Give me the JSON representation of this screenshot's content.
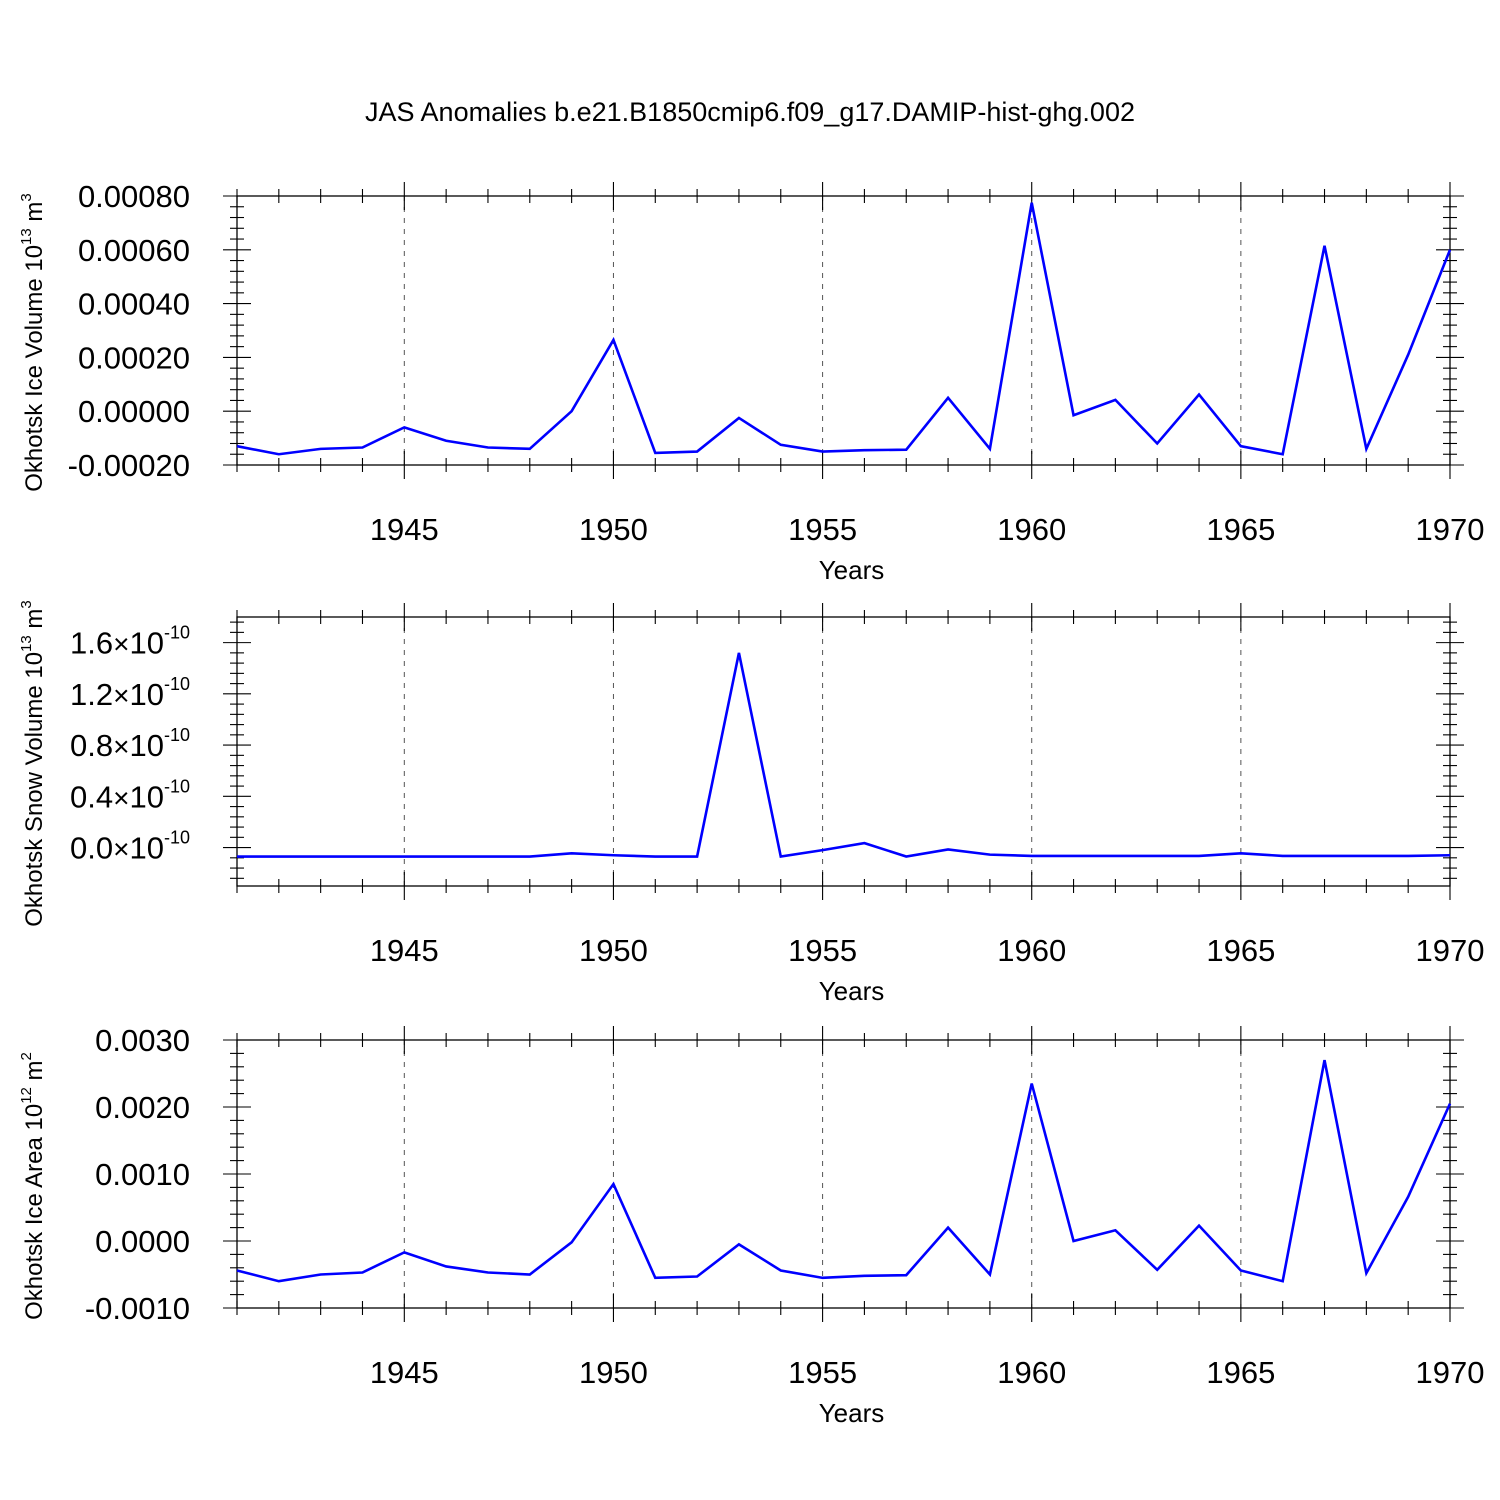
{
  "title": "JAS Anomalies b.e21.B1850cmip6.f09_g17.DAMIP-hist-ghg.002",
  "colors": {
    "line": "#0000ff",
    "axes": "#000000",
    "grid": "#555555"
  },
  "chart_data": [
    {
      "type": "line",
      "ylabel": "Okhotsk Ice Volume 10",
      "ylabel_exp": "13",
      "ylabel_unit": " m",
      "ylabel_unit_exp": "3",
      "xlabel": "Years",
      "xlim": [
        1941,
        1970
      ],
      "ylim": [
        -0.0002,
        0.0008
      ],
      "x_ticks": [
        1945,
        1950,
        1955,
        1960,
        1965,
        1970
      ],
      "x_tick_labels": [
        "1945",
        "1950",
        "1955",
        "1960",
        "1965",
        "1970"
      ],
      "y_ticks": [
        -0.0002,
        0.0,
        0.0002,
        0.0004,
        0.0006,
        0.0008
      ],
      "y_tick_labels": [
        "-0.00020",
        "0.00000",
        "0.00020",
        "0.00040",
        "0.00060",
        "0.00080"
      ],
      "x": [
        1941,
        1942,
        1943,
        1944,
        1945,
        1946,
        1947,
        1948,
        1949,
        1950,
        1951,
        1952,
        1953,
        1954,
        1955,
        1956,
        1957,
        1958,
        1959,
        1960,
        1961,
        1962,
        1963,
        1964,
        1965,
        1966,
        1967,
        1968,
        1969,
        1970
      ],
      "series": [
        {
          "name": "Okhotsk Ice Volume",
          "values": [
            -0.00013,
            -0.00016,
            -0.00014,
            -0.000135,
            -6e-05,
            -0.00011,
            -0.000135,
            -0.00014,
            0.0,
            0.000265,
            -0.000155,
            -0.00015,
            -2.5e-05,
            -0.000125,
            -0.00015,
            -0.000145,
            -0.000143,
            5e-05,
            -0.00014,
            0.000775,
            -1.5e-05,
            4.2e-05,
            -0.00012,
            6.2e-05,
            -0.00013,
            -0.00016,
            0.000615,
            -0.00014,
            0.00021,
            0.0006
          ]
        }
      ]
    },
    {
      "type": "line",
      "ylabel": "Okhotsk Snow Volume 10",
      "ylabel_exp": "13",
      "ylabel_unit": " m",
      "ylabel_unit_exp": "3",
      "xlabel": "Years",
      "xlim": [
        1941,
        1970
      ],
      "ylim": [
        -3e-11,
        1.8e-10
      ],
      "x_ticks": [
        1945,
        1950,
        1955,
        1960,
        1965,
        1970
      ],
      "x_tick_labels": [
        "1945",
        "1950",
        "1955",
        "1960",
        "1965",
        "1970"
      ],
      "y_ticks": [
        0.0,
        4e-11,
        8e-11,
        1.2e-10,
        1.6e-10
      ],
      "y_tick_labels": [
        {
          "mantissa": "0.0",
          "times": "×",
          "base": "10",
          "exp": "-10"
        },
        {
          "mantissa": "0.4",
          "times": "×",
          "base": "10",
          "exp": "-10"
        },
        {
          "mantissa": "0.8",
          "times": "×",
          "base": "10",
          "exp": "-10"
        },
        {
          "mantissa": "1.2",
          "times": "×",
          "base": "10",
          "exp": "-10"
        },
        {
          "mantissa": "1.6",
          "times": "×",
          "base": "10",
          "exp": "-10"
        }
      ],
      "x": [
        1941,
        1942,
        1943,
        1944,
        1945,
        1946,
        1947,
        1948,
        1949,
        1950,
        1951,
        1952,
        1953,
        1954,
        1955,
        1956,
        1957,
        1958,
        1959,
        1960,
        1961,
        1962,
        1963,
        1964,
        1965,
        1966,
        1967,
        1968,
        1969,
        1970
      ],
      "series": [
        {
          "name": "Okhotsk Snow Volume",
          "values": [
            -7e-12,
            -7e-12,
            -7e-12,
            -7e-12,
            -7e-12,
            -7e-12,
            -7e-12,
            -7e-12,
            -4.5e-12,
            -6e-12,
            -7e-12,
            -7e-12,
            1.52e-10,
            -7e-12,
            -2e-12,
            3.5e-12,
            -7e-12,
            -1.5e-12,
            -5.5e-12,
            -6.5e-12,
            -6.5e-12,
            -6.5e-12,
            -6.5e-12,
            -6.5e-12,
            -4.5e-12,
            -6.5e-12,
            -6.5e-12,
            -6.5e-12,
            -6.5e-12,
            -6e-12
          ]
        }
      ]
    },
    {
      "type": "line",
      "ylabel": "Okhotsk Ice Area 10",
      "ylabel_exp": "12",
      "ylabel_unit": " m",
      "ylabel_unit_exp": "2",
      "xlabel": "Years",
      "xlim": [
        1941,
        1970
      ],
      "ylim": [
        -0.001,
        0.003
      ],
      "x_ticks": [
        1945,
        1950,
        1955,
        1960,
        1965,
        1970
      ],
      "x_tick_labels": [
        "1945",
        "1950",
        "1955",
        "1960",
        "1965",
        "1970"
      ],
      "y_ticks": [
        -0.001,
        0.0,
        0.001,
        0.002,
        0.003
      ],
      "y_tick_labels": [
        "-0.0010",
        "0.0000",
        "0.0010",
        "0.0020",
        "0.0030"
      ],
      "x": [
        1941,
        1942,
        1943,
        1944,
        1945,
        1946,
        1947,
        1948,
        1949,
        1950,
        1951,
        1952,
        1953,
        1954,
        1955,
        1956,
        1957,
        1958,
        1959,
        1960,
        1961,
        1962,
        1963,
        1964,
        1965,
        1966,
        1967,
        1968,
        1969,
        1970
      ],
      "series": [
        {
          "name": "Okhotsk Ice Area",
          "values": [
            -0.00044,
            -0.0006,
            -0.0005,
            -0.00047,
            -0.00017,
            -0.00038,
            -0.00047,
            -0.0005,
            -2e-05,
            0.00085,
            -0.00055,
            -0.00053,
            -5e-05,
            -0.00044,
            -0.00055,
            -0.00052,
            -0.00051,
            0.0002,
            -0.0005,
            0.00235,
            0.0,
            0.00016,
            -0.00043,
            0.00023,
            -0.00044,
            -0.0006,
            0.0027,
            -0.00048,
            0.00066,
            0.00205
          ]
        }
      ]
    }
  ]
}
